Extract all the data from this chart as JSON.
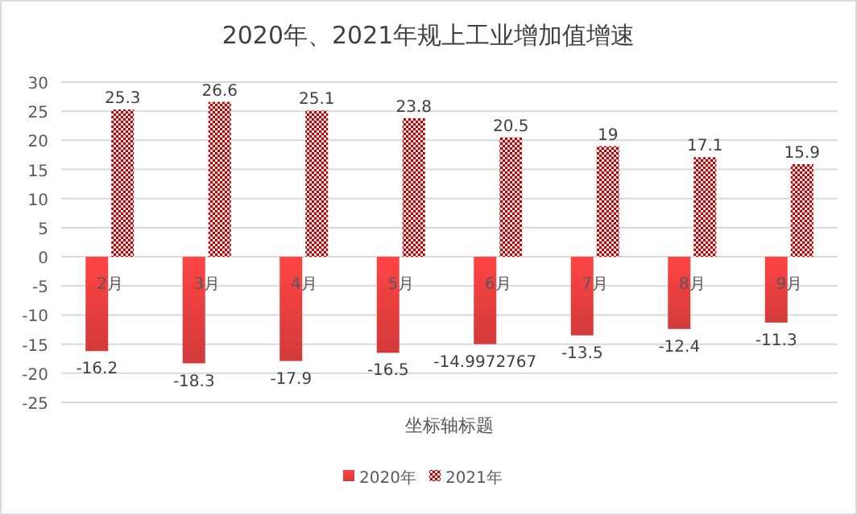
{
  "chart_data": {
    "type": "bar",
    "title": "2020年、2021年规上工业增加值增速",
    "xlabel": "坐标轴标题",
    "categories": [
      "2月",
      "3月",
      "4月",
      "5月",
      "6月",
      "7月",
      "8月",
      "9月"
    ],
    "series": [
      {
        "name": "2020年",
        "color": "#d23a3a",
        "values": [
          -16.2,
          -18.3,
          -17.9,
          -16.5,
          -14.9972767,
          -13.5,
          -12.4,
          -11.3
        ]
      },
      {
        "name": "2021年",
        "color": "#c00000",
        "values": [
          25.3,
          26.6,
          25.1,
          23.8,
          20.5,
          19,
          17.1,
          15.9
        ]
      }
    ],
    "ylim": [
      -25,
      30
    ],
    "yticks": [
      -25,
      -20,
      -15,
      -10,
      -5,
      0,
      5,
      10,
      15,
      20,
      25,
      30
    ],
    "grid": "y",
    "legend": "bottom",
    "data_labels": true
  }
}
